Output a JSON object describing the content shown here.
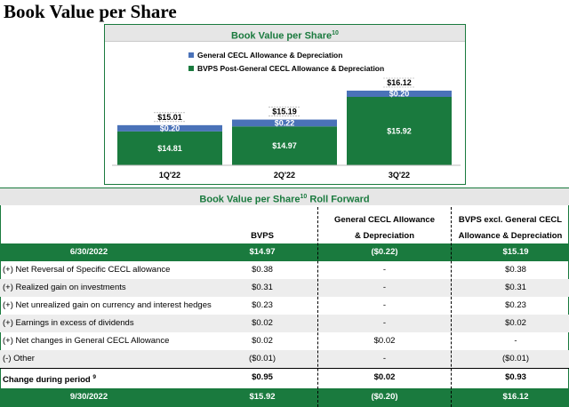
{
  "page_title": "Book Value per Share",
  "colors": {
    "green": "#1a7a3e",
    "blue": "#4a72b8",
    "header_bg": "#e6e6e6"
  },
  "chart_data": {
    "type": "bar",
    "stacked": true,
    "title": "Book Value per Share",
    "title_sup": "10",
    "categories": [
      "1Q'22",
      "2Q'22",
      "3Q'22"
    ],
    "series": [
      {
        "name": "BVPS Post-General CECL Allowance & Depreciation",
        "color": "#1a7a3e",
        "values": [
          14.81,
          14.97,
          15.92
        ],
        "labels": [
          "$14.81",
          "$14.97",
          "$15.92"
        ]
      },
      {
        "name": "General CECL Allowance & Depreciation",
        "color": "#4a72b8",
        "values": [
          0.2,
          0.22,
          0.2
        ],
        "labels": [
          "$0.20",
          "$0.22",
          "$0.20"
        ]
      }
    ],
    "totals": [
      15.01,
      15.19,
      16.12
    ],
    "total_labels": [
      "$15.01",
      "$15.19",
      "$16.12"
    ],
    "legend_order": [
      "General CECL Allowance & Depreciation",
      "BVPS Post-General CECL Allowance & Depreciation"
    ],
    "legend_position": "top-left",
    "axis_break": true
  },
  "table": {
    "title": "Book Value per Share",
    "title_sup": "10",
    "title_suffix": " Roll Forward",
    "col1_header": "BVPS",
    "col2_header_line1": "General CECL Allowance",
    "col2_header_line2": "& Depreciation",
    "col3_header_line1": "BVPS excl. General CECL",
    "col3_header_line2": "Allowance & Depreciation",
    "start": {
      "label": "6/30/2022",
      "c1": "$14.97",
      "c2": "($0.22)",
      "c3": "$15.19"
    },
    "rows": [
      {
        "label": "(+) Net Reversal of Specific CECL allowance",
        "c1": "$0.38",
        "c2": "-",
        "c3": "$0.38"
      },
      {
        "label": "(+) Realized gain on investments",
        "c1": "$0.31",
        "c2": "-",
        "c3": "$0.31"
      },
      {
        "label": "(+) Net unrealized gain on currency and interest hedges",
        "c1": "$0.23",
        "c2": "-",
        "c3": "$0.23"
      },
      {
        "label": "(+) Earnings in excess of dividends",
        "c1": "$0.02",
        "c2": "-",
        "c3": "$0.02"
      },
      {
        "label": "(+) Net changes in General CECL Allowance",
        "c1": "$0.02",
        "c2": "$0.02",
        "c3": "-"
      },
      {
        "label": "(-) Other",
        "c1": "($0.01)",
        "c2": "-",
        "c3": "($0.01)"
      }
    ],
    "change": {
      "label": "Change during period",
      "sup": "9",
      "c1": "$0.95",
      "c2": "$0.02",
      "c3": "$0.93"
    },
    "end": {
      "label": "9/30/2022",
      "c1": "$15.92",
      "c2": "($0.20)",
      "c3": "$16.12"
    }
  }
}
